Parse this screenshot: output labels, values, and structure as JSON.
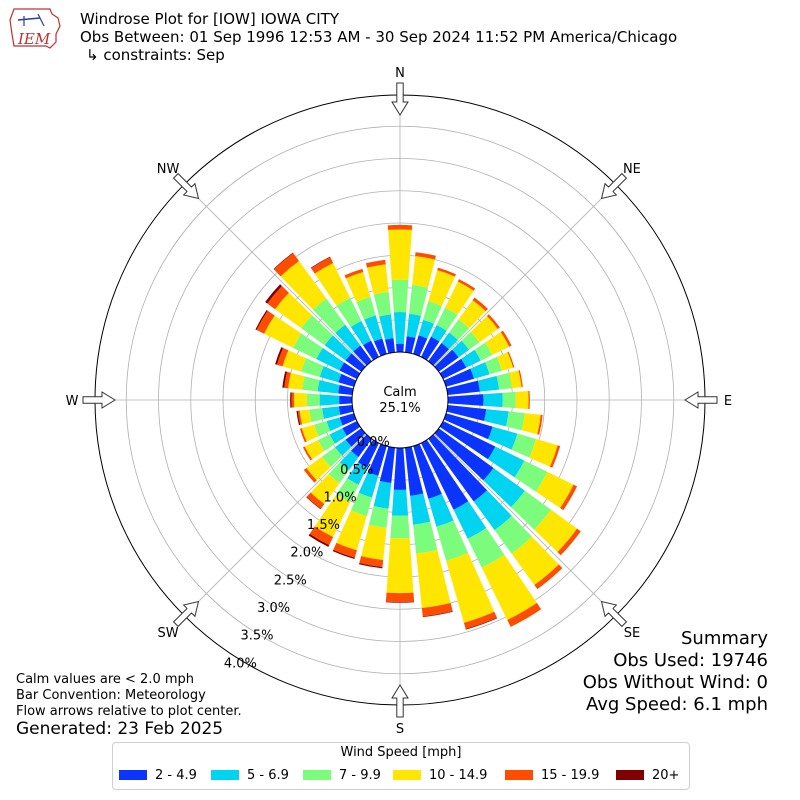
{
  "header": {
    "title": "Windrose Plot for [IOW] IOWA CITY",
    "observation_range": "Obs Between: 01 Sep 1996 12:53 AM - 30 Sep 2024 11:52 PM America/Chicago",
    "constraints": "↳ constraints: Sep",
    "logo_text": "IEM"
  },
  "summary": {
    "heading": "Summary",
    "obs_used": "Obs Used: 19746",
    "obs_without_wind": "Obs Without Wind: 0",
    "avg_speed": "Avg Speed: 6.1 mph"
  },
  "notes": {
    "calm_definition": "Calm values are < 2.0 mph",
    "bar_convention": "Bar Convention: Meteorology",
    "flow_arrows": "Flow arrows relative to plot center.",
    "generated": "Generated: 23 Feb 2025"
  },
  "chart_data": {
    "type": "windrose",
    "calm_label": "Calm",
    "calm_percent": "25.1%",
    "radial_unit": "percent of observations",
    "radial_tick_labels": [
      "0.0%",
      "0.5%",
      "1.0%",
      "1.5%",
      "2.0%",
      "2.5%",
      "3.0%",
      "3.5%",
      "4.0%"
    ],
    "radial_ticks": [
      0.0,
      0.5,
      1.0,
      1.5,
      2.0,
      2.5,
      3.0,
      3.5,
      4.0
    ],
    "direction_labels": [
      "N",
      "NE",
      "E",
      "SE",
      "S",
      "SW",
      "W",
      "NW"
    ],
    "legend_title": "Wind Speed [mph]",
    "speed_bins": [
      "2 - 4.9",
      "5 - 6.9",
      "7 - 9.9",
      "10 - 14.9",
      "15 - 19.9",
      "20+"
    ],
    "colors": [
      "#0c34ff",
      "#00d4f0",
      "#7cfc7c",
      "#ffe600",
      "#ff4d00",
      "#800000"
    ],
    "bar_directions_deg": [
      0,
      10,
      20,
      30,
      40,
      50,
      60,
      70,
      80,
      90,
      100,
      110,
      120,
      130,
      140,
      150,
      160,
      170,
      180,
      190,
      200,
      210,
      220,
      230,
      240,
      250,
      260,
      270,
      280,
      290,
      300,
      310,
      320,
      330,
      340,
      350
    ],
    "series": [
      {
        "name": "2 - 4.9",
        "values": [
          0.13,
          0.25,
          0.3,
          0.35,
          0.35,
          0.38,
          0.4,
          0.45,
          0.5,
          0.55,
          0.6,
          0.75,
          0.9,
          1.05,
          1.2,
          1.15,
          0.85,
          0.75,
          0.65,
          0.55,
          0.48,
          0.42,
          0.35,
          0.3,
          0.25,
          0.23,
          0.21,
          0.2,
          0.22,
          0.25,
          0.3,
          0.3,
          0.3,
          0.28,
          0.25,
          0.22
        ]
      },
      {
        "name": "5 - 6.9",
        "values": [
          0.49,
          0.35,
          0.25,
          0.2,
          0.2,
          0.2,
          0.25,
          0.25,
          0.3,
          0.3,
          0.35,
          0.4,
          0.5,
          0.6,
          0.55,
          0.5,
          0.45,
          0.45,
          0.4,
          0.4,
          0.35,
          0.3,
          0.25,
          0.2,
          0.22,
          0.21,
          0.26,
          0.3,
          0.32,
          0.3,
          0.4,
          0.4,
          0.4,
          0.34,
          0.37,
          0.37
        ]
      },
      {
        "name": "7 - 9.9",
        "values": [
          0.5,
          0.45,
          0.3,
          0.3,
          0.25,
          0.2,
          0.2,
          0.2,
          0.2,
          0.2,
          0.25,
          0.3,
          0.4,
          0.5,
          0.45,
          0.5,
          0.55,
          0.45,
          0.35,
          0.3,
          0.3,
          0.3,
          0.25,
          0.25,
          0.2,
          0.2,
          0.2,
          0.2,
          0.24,
          0.3,
          0.4,
          0.45,
          0.5,
          0.4,
          0.3,
          0.35
        ]
      },
      {
        "name": "10 - 14.9",
        "values": [
          0.78,
          0.45,
          0.5,
          0.45,
          0.37,
          0.35,
          0.29,
          0.18,
          0.15,
          0.2,
          0.25,
          0.35,
          0.45,
          0.5,
          0.6,
          0.9,
          1.0,
          0.85,
          0.85,
          0.5,
          0.55,
          0.6,
          0.4,
          0.3,
          0.23,
          0.2,
          0.15,
          0.2,
          0.22,
          0.3,
          0.5,
          0.5,
          0.72,
          0.6,
          0.4,
          0.43
        ]
      },
      {
        "name": "15 - 19.9",
        "values": [
          0.07,
          0.06,
          0.04,
          0.04,
          0.05,
          0.04,
          0.04,
          0.02,
          0.02,
          0.02,
          0.03,
          0.04,
          0.06,
          0.07,
          0.08,
          0.12,
          0.1,
          0.13,
          0.14,
          0.11,
          0.12,
          0.14,
          0.09,
          0.05,
          0.03,
          0.03,
          0.03,
          0.04,
          0.06,
          0.09,
          0.13,
          0.15,
          0.15,
          0.1,
          0.05,
          0.07
        ]
      },
      {
        "name": "20+",
        "values": [
          0.0,
          0.0,
          0.0,
          0.0,
          0.0,
          0.0,
          0.0,
          0.0,
          0.0,
          0.0,
          0.0,
          0.0,
          0.0,
          0.0,
          0.0,
          0.0,
          0.01,
          0.01,
          0.01,
          0.02,
          0.02,
          0.03,
          0.01,
          0.0,
          0.0,
          0.0,
          0.02,
          0.02,
          0.03,
          0.03,
          0.02,
          0.04,
          0.01,
          0.01,
          0.0,
          0.0
        ]
      }
    ]
  }
}
